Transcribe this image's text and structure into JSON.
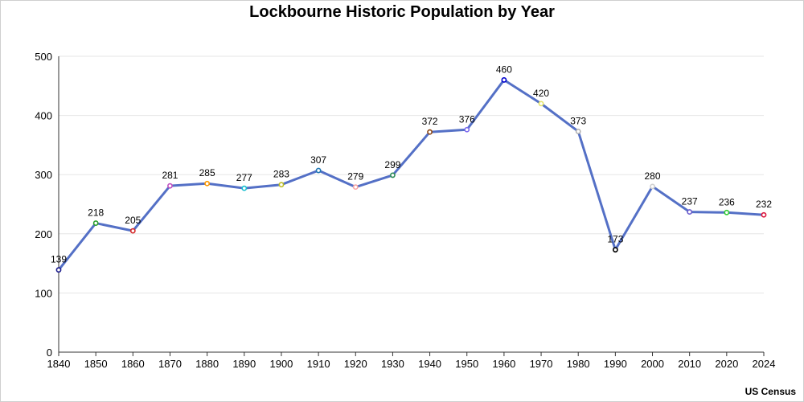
{
  "chart_data": {
    "type": "line",
    "title": "Lockbourne Historic Population by Year",
    "source": "US Census",
    "xlabel": "",
    "ylabel": "",
    "ylim": [
      0,
      500
    ],
    "yticks": [
      0,
      100,
      200,
      300,
      400,
      500
    ],
    "grid": true,
    "line_color": "#5470c6",
    "categories": [
      "1840",
      "1850",
      "1860",
      "1870",
      "1880",
      "1890",
      "1900",
      "1910",
      "1920",
      "1930",
      "1940",
      "1950",
      "1960",
      "1970",
      "1980",
      "1990",
      "2000",
      "2010",
      "2020",
      "2024"
    ],
    "values": [
      139,
      218,
      205,
      281,
      285,
      277,
      283,
      307,
      279,
      299,
      372,
      376,
      460,
      420,
      373,
      173,
      280,
      237,
      236,
      232
    ],
    "marker_colors": [
      "#1a1a8c",
      "#2ca02c",
      "#d62728",
      "#c050c0",
      "#ff9900",
      "#17becf",
      "#bcbd22",
      "#1f77b4",
      "#f7a6a6",
      "#2e8b57",
      "#8b4513",
      "#7b68ee",
      "#0000cd",
      "#e5e56b",
      "#b0b0b0",
      "#000000",
      "#d0d0d0",
      "#6a5acd",
      "#32cd32",
      "#dc143c"
    ]
  }
}
